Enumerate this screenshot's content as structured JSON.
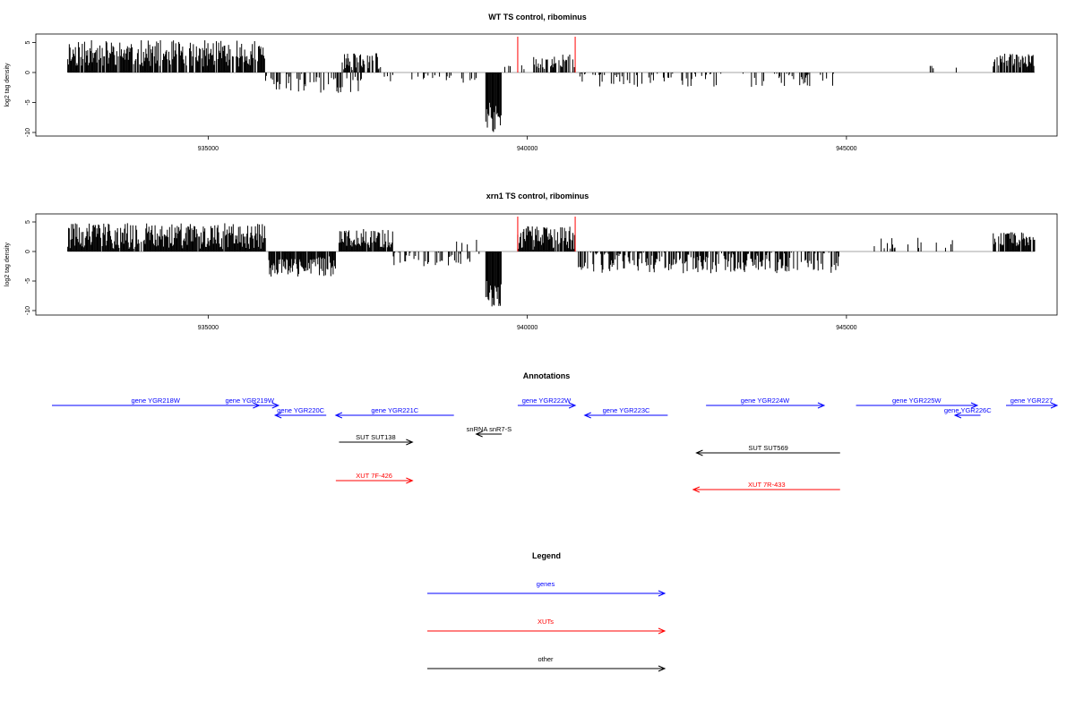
{
  "chart_data": [
    {
      "type": "bar",
      "title": "WT TS control, ribominus",
      "ylabel": "log2 tag density",
      "xlabel": "",
      "xlim": [
        932300,
        948300
      ],
      "ylim": [
        -10,
        6
      ],
      "x_ticks": [
        935000,
        940000,
        945000
      ],
      "y_ticks": [
        5,
        0,
        -5,
        -10
      ],
      "grid": false,
      "segments": [
        {
          "from": 932800,
          "to": 935900,
          "level": 3.2,
          "amp": 2.2,
          "sign": 1,
          "density": 0.85,
          "seed": 11
        },
        {
          "from": 935900,
          "to": 937400,
          "level": -1.8,
          "amp": 1.6,
          "sign": -1,
          "density": 0.35,
          "seed": 12
        },
        {
          "from": 937100,
          "to": 937700,
          "level": 1.8,
          "amp": 1.4,
          "sign": 1,
          "density": 0.7,
          "seed": 13
        },
        {
          "from": 937700,
          "to": 939200,
          "level": -0.9,
          "amp": 0.8,
          "sign": -1,
          "density": 0.18,
          "seed": 14
        },
        {
          "from": 939350,
          "to": 939600,
          "level": -7.5,
          "amp": 2.5,
          "sign": -1,
          "density": 1.0,
          "seed": 15
        },
        {
          "from": 939600,
          "to": 940100,
          "level": 0.8,
          "amp": 0.8,
          "sign": 1,
          "density": 0.12,
          "seed": 16
        },
        {
          "from": 940100,
          "to": 940750,
          "level": 1.8,
          "amp": 1.2,
          "sign": 1,
          "density": 0.55,
          "seed": 17
        },
        {
          "from": 940800,
          "to": 944800,
          "level": -1.1,
          "amp": 1.3,
          "sign": -1,
          "density": 0.22,
          "seed": 18
        },
        {
          "from": 946300,
          "to": 946900,
          "level": 0.9,
          "amp": 0.3,
          "sign": 1,
          "density": 0.05,
          "seed": 19
        },
        {
          "from": 947300,
          "to": 947950,
          "level": 2.0,
          "amp": 1.2,
          "sign": 1,
          "density": 0.8,
          "seed": 20
        }
      ],
      "markers": [
        939850,
        940750
      ]
    },
    {
      "type": "bar",
      "title": "xrn1 TS control, ribominus",
      "ylabel": "log2 tag density",
      "xlabel": "",
      "xlim": [
        932300,
        948300
      ],
      "ylim": [
        -10,
        6
      ],
      "x_ticks": [
        935000,
        940000,
        945000
      ],
      "y_ticks": [
        5,
        0,
        -5,
        -10
      ],
      "grid": false,
      "segments": [
        {
          "from": 932800,
          "to": 935900,
          "level": 2.6,
          "amp": 2.2,
          "sign": 1,
          "density": 0.95,
          "seed": 31
        },
        {
          "from": 935950,
          "to": 937000,
          "level": -2.6,
          "amp": 1.8,
          "sign": -1,
          "density": 0.9,
          "seed": 32
        },
        {
          "from": 937050,
          "to": 937900,
          "level": 2.2,
          "amp": 1.6,
          "sign": 1,
          "density": 0.9,
          "seed": 33
        },
        {
          "from": 937900,
          "to": 939300,
          "level": -1.2,
          "amp": 1.3,
          "sign": -1,
          "density": 0.35,
          "seed": 34
        },
        {
          "from": 938700,
          "to": 939300,
          "level": 1.0,
          "amp": 1.0,
          "sign": 1,
          "density": 0.15,
          "seed": 35
        },
        {
          "from": 939350,
          "to": 939600,
          "level": -7.5,
          "amp": 2.5,
          "sign": -1,
          "density": 1.0,
          "seed": 36
        },
        {
          "from": 939850,
          "to": 940750,
          "level": 2.3,
          "amp": 2.0,
          "sign": 1,
          "density": 0.9,
          "seed": 37
        },
        {
          "from": 940800,
          "to": 944900,
          "level": -1.8,
          "amp": 1.9,
          "sign": -1,
          "density": 0.7,
          "seed": 38
        },
        {
          "from": 945400,
          "to": 946800,
          "level": 1.2,
          "amp": 1.2,
          "sign": 1,
          "density": 0.12,
          "seed": 39
        },
        {
          "from": 947300,
          "to": 947950,
          "level": 2.1,
          "amp": 1.2,
          "sign": 1,
          "density": 0.85,
          "seed": 40
        }
      ],
      "markers": [
        939850,
        940750
      ]
    }
  ],
  "annotations": {
    "title": "Annotations",
    "xlim": [
      932300,
      948300
    ],
    "features": [
      {
        "label": "gene YGR218W",
        "from": 932550,
        "to": 935800,
        "strand": "+",
        "row": 0,
        "color": "#0000ff"
      },
      {
        "label": "gene YGR219W",
        "from": 935200,
        "to": 936100,
        "strand": "+",
        "row": 0,
        "color": "#0000ff"
      },
      {
        "label": "gene YGR220C",
        "from": 936050,
        "to": 936850,
        "strand": "-",
        "row": 1,
        "color": "#0000ff"
      },
      {
        "label": "gene YGR221C",
        "from": 937000,
        "to": 938850,
        "strand": "-",
        "row": 1,
        "color": "#0000ff"
      },
      {
        "label": "gene YGR222W",
        "from": 939850,
        "to": 940750,
        "strand": "+",
        "row": 0,
        "color": "#0000ff"
      },
      {
        "label": "gene YGR223C",
        "from": 940900,
        "to": 942200,
        "strand": "-",
        "row": 1,
        "color": "#0000ff"
      },
      {
        "label": "gene YGR224W",
        "from": 942800,
        "to": 944650,
        "strand": "+",
        "row": 0,
        "color": "#0000ff"
      },
      {
        "label": "gene YGR225W",
        "from": 945150,
        "to": 947050,
        "strand": "+",
        "row": 0,
        "color": "#0000ff"
      },
      {
        "label": "gene YGR226C",
        "from": 946700,
        "to": 947100,
        "strand": "-",
        "row": 1,
        "color": "#0000ff"
      },
      {
        "label": "gene YGR227",
        "from": 947500,
        "to": 948300,
        "strand": "+",
        "row": 0,
        "color": "#0000ff"
      },
      {
        "label": "snRNA snR7-S",
        "from": 939200,
        "to": 939600,
        "strand": "-",
        "row": 2,
        "color": "#000000"
      },
      {
        "label": "SUT SUT138",
        "from": 937050,
        "to": 938200,
        "strand": "+",
        "row": 3,
        "color": "#000000"
      },
      {
        "label": "SUT SUT569",
        "from": 942650,
        "to": 944900,
        "strand": "-",
        "row": 4,
        "color": "#000000"
      },
      {
        "label": "XUT 7F-426",
        "from": 937000,
        "to": 938200,
        "strand": "+",
        "row": 5,
        "color": "#ff0000"
      },
      {
        "label": "XUT 7R-433",
        "from": 942600,
        "to": 944900,
        "strand": "-",
        "row": 6,
        "color": "#ff0000"
      }
    ]
  },
  "legend": {
    "title": "Legend",
    "entries": [
      {
        "label": "genes",
        "color": "#0000ff"
      },
      {
        "label": "XUTs",
        "color": "#ff0000"
      },
      {
        "label": "other",
        "color": "#000000"
      }
    ]
  }
}
